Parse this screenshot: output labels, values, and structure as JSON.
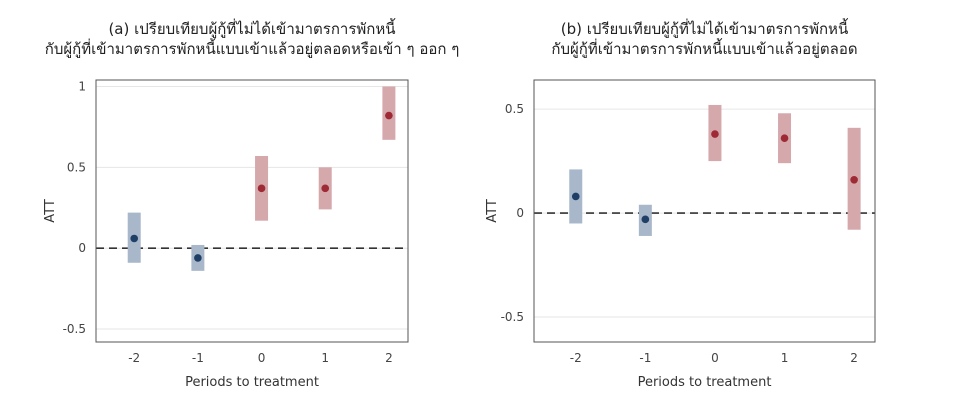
{
  "chart_data": [
    {
      "type": "errorbar",
      "title": [
        "(a) เปรียบเทียบผู้กู้ที่ไม่ได้เข้ามาตรการพักหนี้",
        "กับผู้กู้ที่เข้ามาตรการพักหนี้แบบเข้าแล้วอยู่ตลอดหรือเข้า ๆ ออก ๆ"
      ],
      "xlabel": "Periods to treatment",
      "ylabel": "ATT",
      "ylim": [
        -0.58,
        1.04
      ],
      "yticks": [
        1,
        0.5,
        0,
        -0.5
      ],
      "ytick_labels": [
        "1",
        "0.5",
        "0",
        "-0.5"
      ],
      "xlim": [
        -2.6,
        2.3
      ],
      "xticks": [
        -2,
        -1,
        0,
        1,
        2
      ],
      "xtick_labels": [
        "-2",
        "-1",
        "0",
        "1",
        "2"
      ],
      "points": [
        {
          "x": -2,
          "att": 0.06,
          "lo": -0.09,
          "hi": 0.22,
          "group": "pre"
        },
        {
          "x": -1,
          "att": -0.06,
          "lo": -0.14,
          "hi": 0.02,
          "group": "post0"
        },
        {
          "x": 0,
          "att": 0.37,
          "lo": 0.17,
          "hi": 0.57,
          "group": "post"
        },
        {
          "x": 1,
          "att": 0.37,
          "lo": 0.24,
          "hi": 0.5,
          "group": "post"
        },
        {
          "x": 2,
          "att": 0.82,
          "lo": 0.67,
          "hi": 1.0,
          "group": "post"
        }
      ]
    },
    {
      "type": "errorbar",
      "title": [
        "(b) เปรียบเทียบผู้กู้ที่ไม่ได้เข้ามาตรการพักหนี้",
        "กับผู้กู้ที่เข้ามาตรการพักหนี้แบบเข้าแล้วอยู่ตลอด"
      ],
      "xlabel": "Periods to treatment",
      "ylabel": "ATT",
      "ylim": [
        -0.62,
        0.64
      ],
      "yticks": [
        0.5,
        0,
        -0.5
      ],
      "ytick_labels": [
        "0.5",
        "0",
        "-0.5"
      ],
      "xlim": [
        -2.6,
        2.3
      ],
      "xticks": [
        -2,
        -1,
        0,
        1,
        2
      ],
      "xtick_labels": [
        "-2",
        "-1",
        "0",
        "1",
        "2"
      ],
      "points": [
        {
          "x": -2,
          "att": 0.08,
          "lo": -0.05,
          "hi": 0.21,
          "group": "pre"
        },
        {
          "x": -1,
          "att": -0.03,
          "lo": -0.11,
          "hi": 0.04,
          "group": "pre"
        },
        {
          "x": 0,
          "att": 0.38,
          "lo": 0.25,
          "hi": 0.52,
          "group": "post"
        },
        {
          "x": 1,
          "att": 0.36,
          "lo": 0.24,
          "hi": 0.48,
          "group": "post"
        },
        {
          "x": 2,
          "att": 0.16,
          "lo": -0.08,
          "hi": 0.41,
          "group": "post"
        }
      ]
    }
  ],
  "colors": {
    "pre_band": "#a8b7c9",
    "pre_point": "#1f3f66",
    "post_band": "#d5a8ac",
    "post_point": "#9e2a35",
    "zero_line": "#333333",
    "grid": "#e6e6e6",
    "frame": "#555555"
  }
}
